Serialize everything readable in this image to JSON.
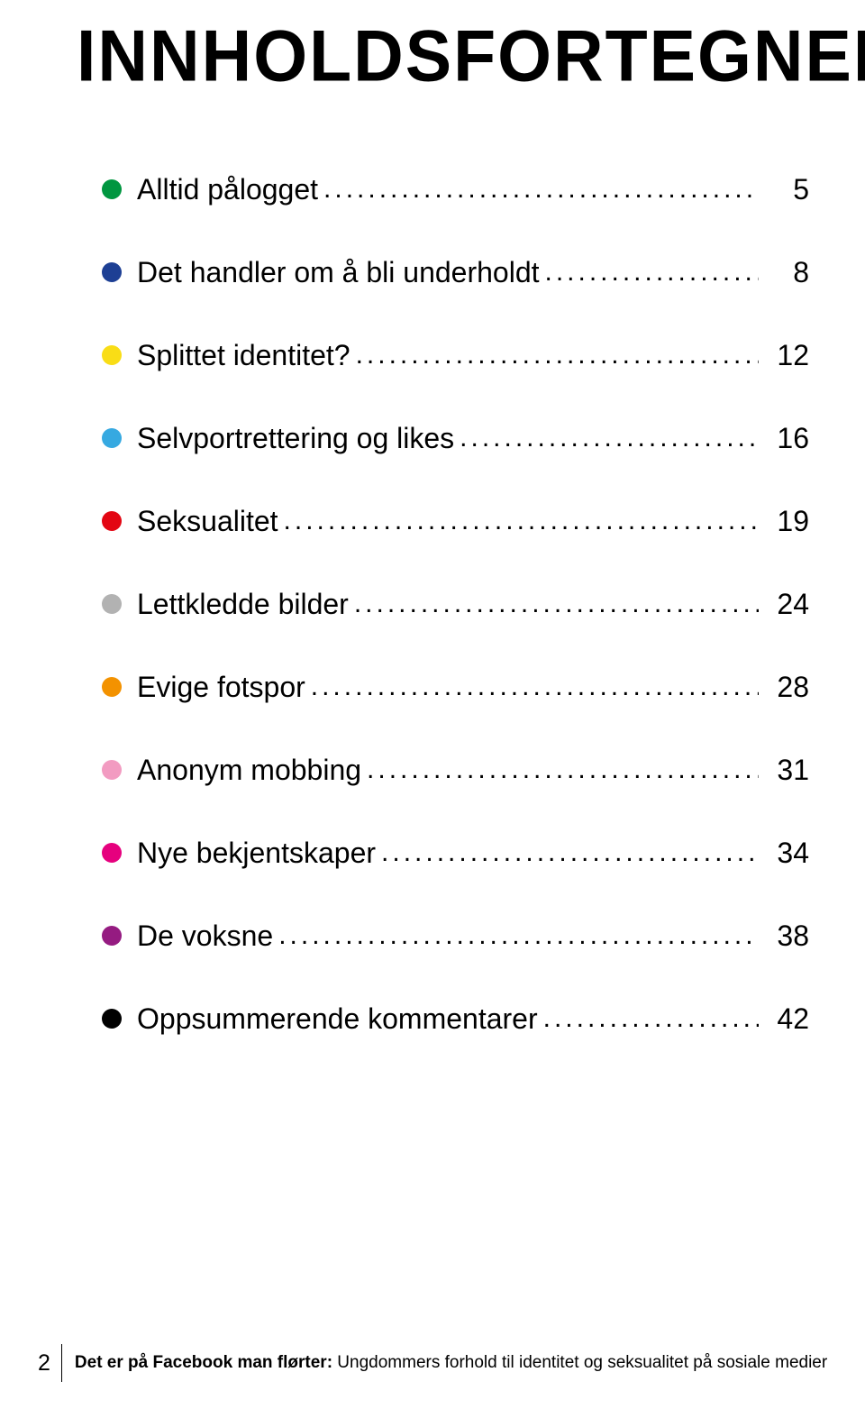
{
  "title": "INNHOLDSFORTEGNELSE",
  "toc": [
    {
      "bullet_color": "#009640",
      "label": "Alltid pålogget",
      "page": "5"
    },
    {
      "bullet_color": "#1d3f94",
      "label": "Det handler om å bli underholdt",
      "page": "8"
    },
    {
      "bullet_color": "#f9dd16",
      "label": "Splittet identitet?",
      "page": "12"
    },
    {
      "bullet_color": "#36a9e1",
      "label": "Selvportrettering og likes",
      "page": "16"
    },
    {
      "bullet_color": "#e30613",
      "label": "Seksualitet",
      "page": "19"
    },
    {
      "bullet_color": "#b2b2b2",
      "label": "Lettkledde bilder",
      "page": "24"
    },
    {
      "bullet_color": "#f39200",
      "label": "Evige fotspor",
      "page": "28"
    },
    {
      "bullet_color": "#f29bc1",
      "label": "Anonym mobbing",
      "page": "31"
    },
    {
      "bullet_color": "#e6007e",
      "label": "Nye bekjentskaper",
      "page": "34"
    },
    {
      "bullet_color": "#951b81",
      "label": "De voksne",
      "page": "38"
    },
    {
      "bullet_color": "#000000",
      "label": "Oppsummerende kommentarer",
      "page": "42"
    }
  ],
  "footer": {
    "page_number": "2",
    "bold_text": "Det er på Facebook man flørter:",
    "rest_text": " Ungdommers forhold til identitet og seksualitet på sosiale medier"
  }
}
